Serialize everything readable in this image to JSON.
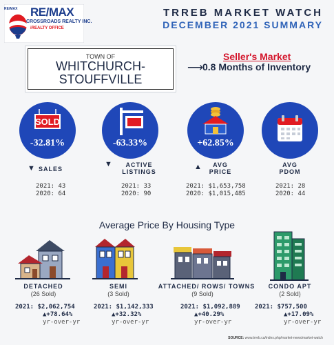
{
  "brand": {
    "logo_small": "RE/MAX",
    "logo_name": "RE/MAX",
    "logo_line1": "CROSSROADS REALTY INC.",
    "logo_line2": "iREALTY OFFICE",
    "colors": {
      "blue": "#1b3c8c",
      "red": "#e11b22"
    }
  },
  "header": {
    "title": "TRREB MARKET WATCH",
    "subtitle": "DECEMBER 2021 SUMMARY"
  },
  "town": {
    "prefix": "TOWN OF",
    "name_line1": "WHITCHURCH-",
    "name_line2": "STOUFFVILLE"
  },
  "market": {
    "status": "Seller's Market",
    "inventory": "0.8 Months of Inventory"
  },
  "stats": [
    {
      "icon": "sold-sign-icon",
      "change": "-32.81%",
      "direction": "down",
      "label_line1": "SALES",
      "label_line2": "",
      "line2021": "2021: 43",
      "line2020": "2020: 64"
    },
    {
      "icon": "listing-sign-icon",
      "change": "-63.33%",
      "direction": "down",
      "label_line1": "ACTIVE",
      "label_line2": "LISTINGS",
      "line2021": "2021: 33",
      "line2020": "2020: 90"
    },
    {
      "icon": "house-coins-icon",
      "change": "+62.85%",
      "direction": "up",
      "label_line1": "AVG",
      "label_line2": "PRICE",
      "line2021": "2021: $1,653,758",
      "line2020": "2020: $1,015,485"
    },
    {
      "icon": "calendar-icon",
      "change": "",
      "direction": "",
      "label_line1": "AVG",
      "label_line2": "PDOM",
      "line2021": "2021: 28",
      "line2020": "2020: 44"
    }
  ],
  "section_title": "Average Price By Housing Type",
  "housing": [
    {
      "icon": "detached-house-icon",
      "type": "DETACHED",
      "sold": "(26 Sold)",
      "price": "2021: $2,062,754",
      "change": "+78.64%",
      "yoy": "yr-over-yr"
    },
    {
      "icon": "semi-house-icon",
      "type": "SEMI",
      "sold": "(3 Sold)",
      "price": "2021: $1,142,333",
      "change": "+32.32%",
      "yoy": "yr-over-yr"
    },
    {
      "icon": "townhouse-row-icon",
      "type": "ATTACHED/ ROWS/ TOWNS",
      "sold": "(9 Sold)",
      "price": "2021: $1,092,889",
      "change": "+40.29%",
      "yoy": "yr-over-yr"
    },
    {
      "icon": "condo-tower-icon",
      "type": "CONDO APT",
      "sold": "(2 Sold)",
      "price": "2021: $757,500",
      "change": "+17.09%",
      "yoy": "yr-over-yr"
    }
  ],
  "source": {
    "label": "SOURCE:",
    "url": "www.trreb.ca/index.php/market-news/market-watch"
  }
}
